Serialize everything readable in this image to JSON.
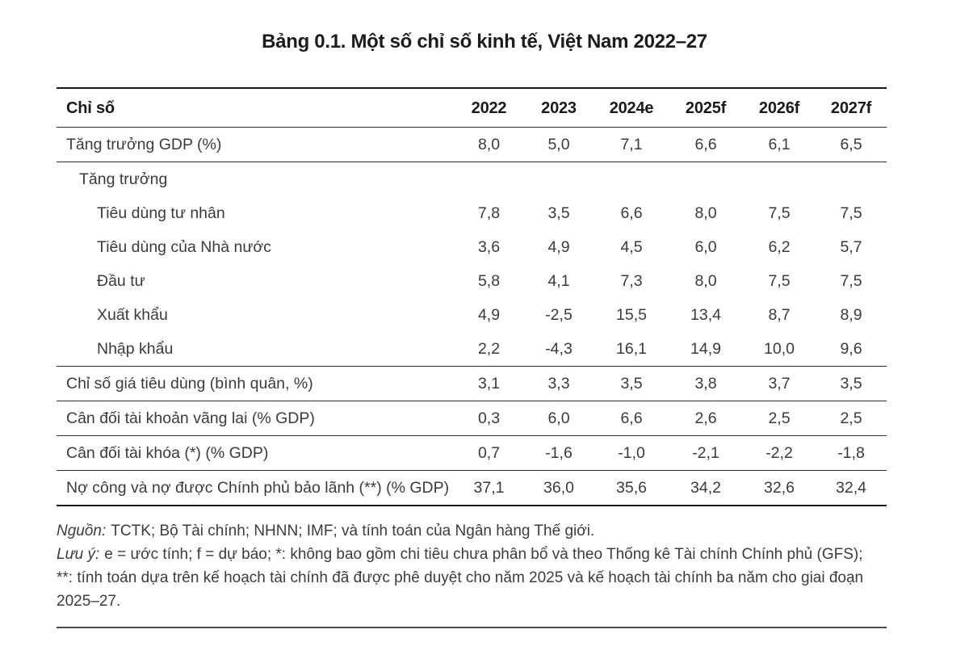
{
  "title": "Bảng 0.1. Một số chỉ số kinh tế, Việt Nam 2022–27",
  "colors": {
    "text": "#3b3b3b",
    "heading": "#1a1a1a",
    "rules": "#2b2b2b"
  },
  "table": {
    "header": {
      "indicator": "Chỉ số",
      "years": [
        "2022",
        "2023",
        "2024e",
        "2025f",
        "2026f",
        "2027f"
      ]
    },
    "rows": [
      {
        "label": "Tăng trưởng GDP (%)",
        "indent": 0,
        "values": [
          "8,0",
          "5,0",
          "7,1",
          "6,6",
          "6,1",
          "6,5"
        ],
        "line_below": true
      },
      {
        "label": "Tăng trưởng",
        "indent": 1,
        "values": [],
        "line_below": false
      },
      {
        "label": "Tiêu dùng tư nhân",
        "indent": 2,
        "values": [
          "7,8",
          "3,5",
          "6,6",
          "8,0",
          "7,5",
          "7,5"
        ],
        "line_below": false
      },
      {
        "label": "Tiêu dùng của Nhà nước",
        "indent": 2,
        "values": [
          "3,6",
          "4,9",
          "4,5",
          "6,0",
          "6,2",
          "5,7"
        ],
        "line_below": false
      },
      {
        "label": "Đầu tư",
        "indent": 2,
        "values": [
          "5,8",
          "4,1",
          "7,3",
          "8,0",
          "7,5",
          "7,5"
        ],
        "line_below": false
      },
      {
        "label": "Xuất khẩu",
        "indent": 2,
        "values": [
          "4,9",
          "-2,5",
          "15,5",
          "13,4",
          "8,7",
          "8,9"
        ],
        "line_below": false
      },
      {
        "label": "Nhập khẩu",
        "indent": 2,
        "values": [
          "2,2",
          "-4,3",
          "16,1",
          "14,9",
          "10,0",
          "9,6"
        ],
        "line_below": true
      },
      {
        "label": "Chỉ số giá tiêu dùng (bình quân, %)",
        "indent": 0,
        "values": [
          "3,1",
          "3,3",
          "3,5",
          "3,8",
          "3,7",
          "3,5"
        ],
        "line_below": true
      },
      {
        "label": "Cân đối tài khoản vãng lai (% GDP)",
        "indent": 0,
        "values": [
          "0,3",
          "6,0",
          "6,6",
          "2,6",
          "2,5",
          "2,5"
        ],
        "line_below": true
      },
      {
        "label": "Cân đối tài khóa (*) (% GDP)",
        "indent": 0,
        "values": [
          "0,7",
          "-1,6",
          "-1,0",
          "-2,1",
          "-2,2",
          "-1,8"
        ],
        "line_below": true
      },
      {
        "label": "Nợ công và nợ được Chính phủ bảo lãnh (**) (% GDP)",
        "indent": 0,
        "values": [
          "37,1",
          "36,0",
          "35,6",
          "34,2",
          "32,6",
          "32,4"
        ],
        "line_below": false
      }
    ]
  },
  "notes": {
    "source": {
      "label": "Nguồn:",
      "text": "TCTK; Bộ Tài chính; NHNN; IMF; và tính toán của Ngân hàng Thế giới."
    },
    "remark": {
      "label": "Lưu ý:",
      "line1": "e = ước tính; f = dự báo; *: không bao gồm chi tiêu chưa phân bổ và theo Thống kê Tài chính Chính phủ (GFS);",
      "line2": "**: tính toán dựa trên kế hoạch tài chính đã được phê duyệt cho năm 2025 và kế hoạch tài chính ba năm cho giai đoạn",
      "line3": "2025–27."
    }
  }
}
